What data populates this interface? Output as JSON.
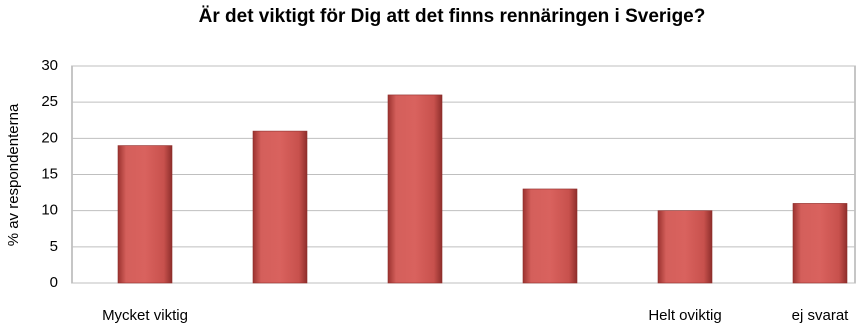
{
  "chart_data": {
    "type": "bar",
    "title": "Är det viktigt för Dig att det finns rennäringen i Sverige?",
    "y_label": "% av respondenterna",
    "categories": [
      "Mycket viktig",
      null,
      null,
      null,
      "Helt oviktig",
      "ej svarat"
    ],
    "values": [
      19,
      21,
      26,
      13,
      10,
      11
    ],
    "color": "#c0504d",
    "ylim": [
      0,
      30
    ],
    "yticks": [
      0,
      5,
      10,
      15,
      20,
      25,
      30
    ],
    "grid": true
  }
}
